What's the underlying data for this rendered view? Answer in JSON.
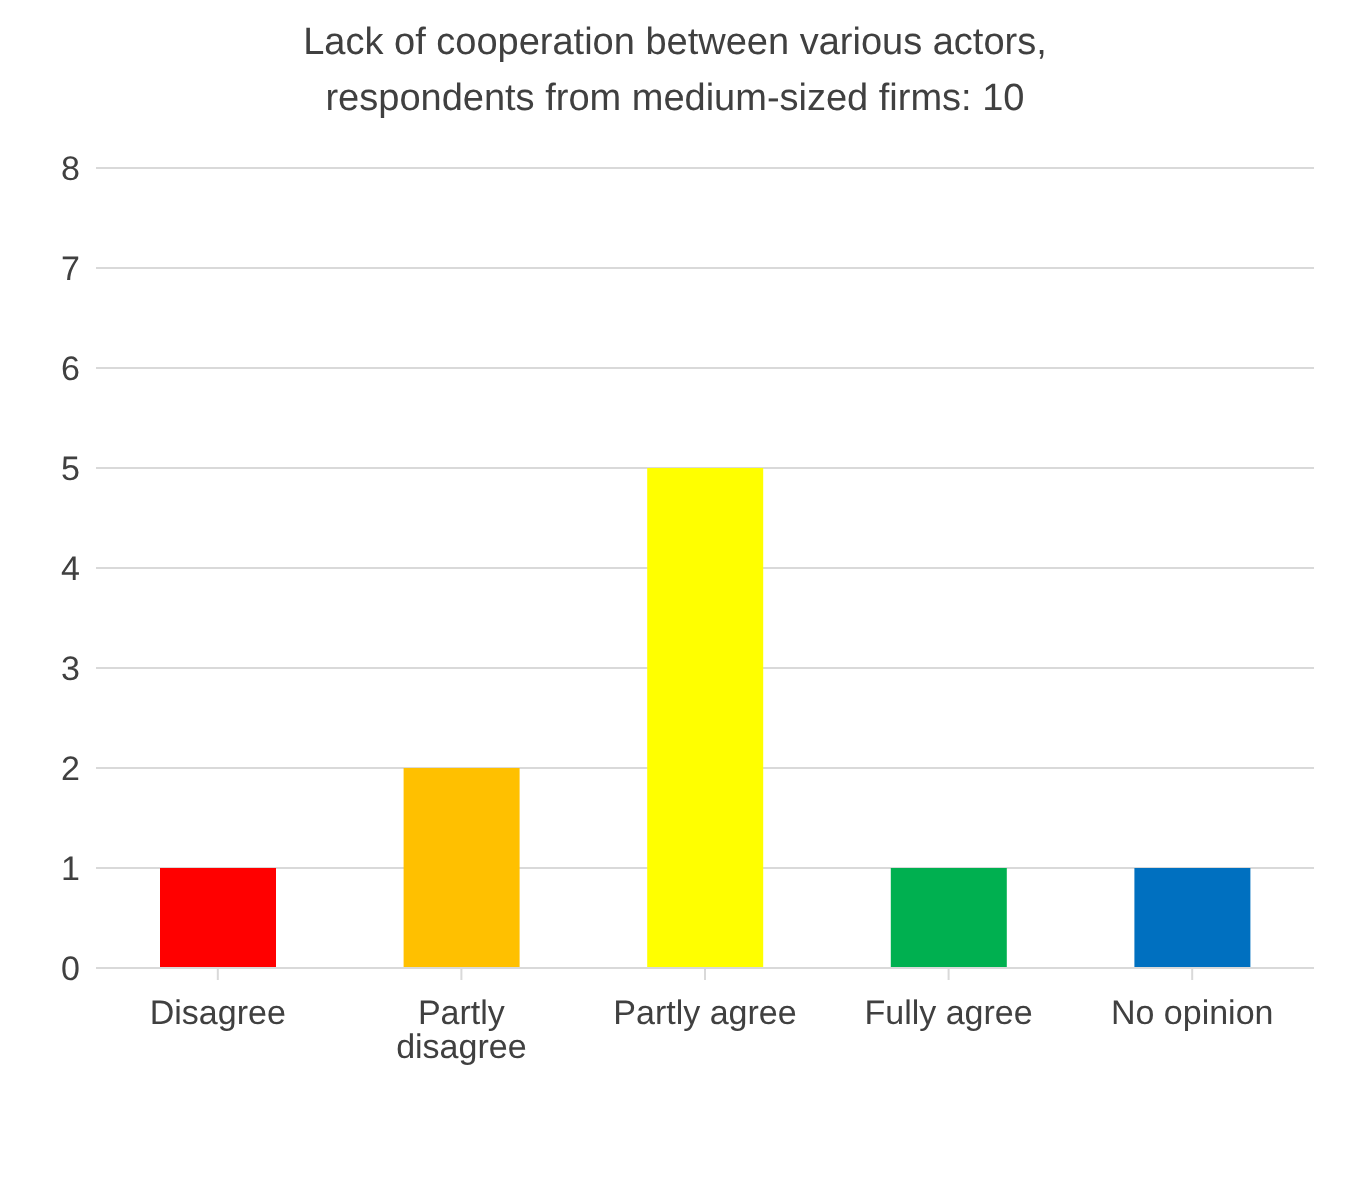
{
  "chart_data": {
    "type": "bar",
    "title": "Lack of cooperation between various actors,\nrespondents from medium-sized firms: 10",
    "categories": [
      "Disagree",
      "Partly disagree",
      "Partly agree",
      "Fully agree",
      "No opinion"
    ],
    "values": [
      1,
      2,
      5,
      1,
      1
    ],
    "colors": [
      "#ff0000",
      "#ffc000",
      "#ffff00",
      "#00b050",
      "#0070c0"
    ],
    "ylim": [
      0,
      8
    ],
    "yticks": [
      0,
      1,
      2,
      3,
      4,
      5,
      6,
      7,
      8
    ],
    "grid": "y",
    "legend": false
  }
}
